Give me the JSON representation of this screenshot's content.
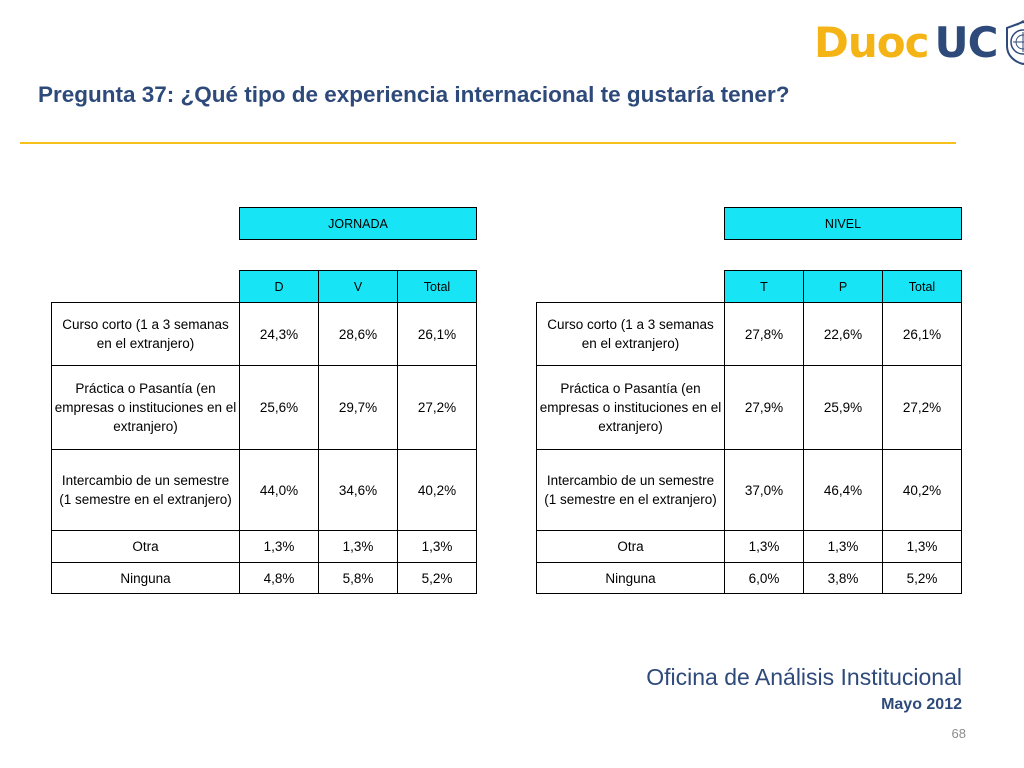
{
  "logo": {
    "part1": "Duoc",
    "part2": "UC"
  },
  "title": "Pregunta 37: ¿Qué tipo de experiencia internacional te gustaría tener?",
  "colors": {
    "accent": "#f5c21b",
    "brand_blue": "#2e4a7a",
    "header_cyan": "#17e5f5",
    "logo_gold": "#f5b416"
  },
  "tables": [
    {
      "group": "JORNADA",
      "columns": [
        "D",
        "V",
        "Total"
      ],
      "rows": [
        {
          "label": "Curso corto (1 a 3 semanas en el extranjero)",
          "values": [
            "24,3%",
            "28,6%",
            "26,1%"
          ]
        },
        {
          "label": "Práctica o Pasantía (en empresas o instituciones en el extranjero)",
          "values": [
            "25,6%",
            "29,7%",
            "27,2%"
          ]
        },
        {
          "label": "Intercambio de un semestre (1 semestre en el extranjero)",
          "values": [
            "44,0%",
            "34,6%",
            "40,2%"
          ]
        },
        {
          "label": "Otra",
          "values": [
            "1,3%",
            "1,3%",
            "1,3%"
          ]
        },
        {
          "label": "Ninguna",
          "values": [
            "4,8%",
            "5,8%",
            "5,2%"
          ]
        }
      ]
    },
    {
      "group": "NIVEL",
      "columns": [
        "T",
        "P",
        "Total"
      ],
      "rows": [
        {
          "label": "Curso corto (1 a 3 semanas en el extranjero)",
          "values": [
            "27,8%",
            "22,6%",
            "26,1%"
          ]
        },
        {
          "label": "Práctica o Pasantía (en empresas o instituciones en el extranjero)",
          "values": [
            "27,9%",
            "25,9%",
            "27,2%"
          ]
        },
        {
          "label": "Intercambio de un semestre (1 semestre en el extranjero)",
          "values": [
            "37,0%",
            "46,4%",
            "40,2%"
          ]
        },
        {
          "label": "Otra",
          "values": [
            "1,3%",
            "1,3%",
            "1,3%"
          ]
        },
        {
          "label": "Ninguna",
          "values": [
            "6,0%",
            "3,8%",
            "5,2%"
          ]
        }
      ]
    }
  ],
  "footer": {
    "office": "Oficina de Análisis Institucional",
    "date": "Mayo 2012",
    "page": "68"
  }
}
